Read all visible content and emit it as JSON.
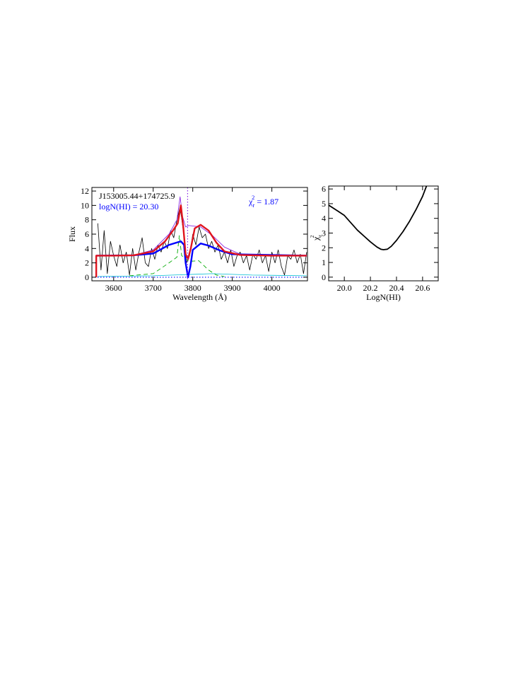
{
  "chart_data": [
    {
      "type": "line",
      "xlabel": "Wavelength (Å)",
      "ylabel": "Flux",
      "xlim": [
        3545,
        4090
      ],
      "ylim": [
        -0.5,
        12.5
      ],
      "xticks": [
        3600,
        3700,
        3800,
        3900,
        4000
      ],
      "yticks": [
        0,
        2,
        4,
        6,
        8,
        10,
        12
      ],
      "annotations": [
        {
          "text": "J153005.44+174725.9",
          "color": "#000000"
        },
        {
          "text": "logN(HI) = 20.30",
          "color": "#0000ff"
        }
      ],
      "chi_label": {
        "base": "χ",
        "sub": "r",
        "sup": "2",
        "rest": " = 1.87",
        "color": "#0000ff"
      },
      "vline": {
        "x": 3787,
        "color": "#8a2be2"
      },
      "series": [
        {
          "color": "#000000",
          "width": 0.8,
          "style": "solid",
          "x": [
            3560,
            3568,
            3576,
            3584,
            3592,
            3600,
            3608,
            3616,
            3624,
            3632,
            3640,
            3648,
            3656,
            3664,
            3672,
            3680,
            3688,
            3696,
            3704,
            3712,
            3720,
            3728,
            3736,
            3744,
            3752,
            3760,
            3768,
            3776,
            3784,
            3792,
            3800,
            3808,
            3816,
            3824,
            3832,
            3840,
            3848,
            3856,
            3864,
            3872,
            3880,
            3888,
            3896,
            3904,
            3912,
            3920,
            3928,
            3936,
            3944,
            3952,
            3960,
            3968,
            3976,
            3984,
            3992,
            4000,
            4008,
            4016,
            4024,
            4032,
            4040,
            4048,
            4056,
            4064,
            4072,
            4080,
            4088
          ],
          "values": [
            7.5,
            1.0,
            6.5,
            0.5,
            5.0,
            3.0,
            1.5,
            4.5,
            2.0,
            3.5,
            0.3,
            4.0,
            1.0,
            3.5,
            5.5,
            2.0,
            1.5,
            4.0,
            2.5,
            4.5,
            3.5,
            5.0,
            4.0,
            6.5,
            5.5,
            8.0,
            9.8,
            6.5,
            2.0,
            3.0,
            6.0,
            4.5,
            7.0,
            5.5,
            6.0,
            4.0,
            5.0,
            3.5,
            4.5,
            2.5,
            3.5,
            2.0,
            3.8,
            1.5,
            3.0,
            3.5,
            2.0,
            3.0,
            1.0,
            3.2,
            2.5,
            3.8,
            2.0,
            3.0,
            0.8,
            3.5,
            2.0,
            3.8,
            1.5,
            0.3,
            3.0,
            2.5,
            3.8,
            2.0,
            3.2,
            0.5,
            3.5
          ]
        },
        {
          "color": "#00bcd4",
          "width": 0.8,
          "style": "solid",
          "x": [
            3560,
            3700,
            3850,
            3950,
            4088
          ],
          "values": [
            0.1,
            0.2,
            0.5,
            0.3,
            0.2
          ]
        },
        {
          "color": "#00aa00",
          "width": 0.9,
          "style": "dashed",
          "x": [
            3640,
            3700,
            3740,
            3760,
            3766,
            3772,
            3790,
            3815,
            3840,
            3860,
            3880
          ],
          "values": [
            0.2,
            0.5,
            2.0,
            2.8,
            5.8,
            3.0,
            2.2,
            2.3,
            1.0,
            0.3,
            0.1
          ]
        },
        {
          "color": "#0000ff",
          "width": 1.2,
          "style": "dotted",
          "x": [
            3545,
            4090
          ],
          "values": [
            0,
            0
          ]
        },
        {
          "color": "#8a2be2",
          "width": 0.9,
          "style": "solid",
          "x": [
            3556,
            3650,
            3700,
            3740,
            3760,
            3768,
            3774,
            3782,
            3790,
            3820,
            3850,
            3880,
            3920,
            4088
          ],
          "values": [
            3.0,
            3.05,
            3.8,
            6.0,
            8.0,
            11.2,
            8.5,
            7.0,
            7.2,
            7.0,
            5.8,
            4.2,
            3.2,
            3.0
          ]
        },
        {
          "color": "#0000ff",
          "width": 2.4,
          "style": "solid",
          "x": [
            3556,
            3650,
            3700,
            3740,
            3770,
            3778,
            3782,
            3788,
            3794,
            3800,
            3820,
            3840,
            3870,
            3900,
            4088
          ],
          "values": [
            3.0,
            3.05,
            3.3,
            4.5,
            5.0,
            4.5,
            2.0,
            0.0,
            1.5,
            3.8,
            4.7,
            4.4,
            3.7,
            3.2,
            3.0
          ]
        },
        {
          "color": "#e0141e",
          "width": 2.4,
          "style": "solid",
          "x": [
            3556,
            3556,
            3600,
            3650,
            3700,
            3730,
            3750,
            3762,
            3770,
            3776,
            3782,
            3788,
            3795,
            3805,
            3820,
            3840,
            3860,
            3880,
            3920,
            4000,
            4088
          ],
          "values": [
            0,
            3.0,
            3.0,
            3.05,
            3.6,
            5.0,
            6.5,
            7.5,
            10.0,
            7.0,
            3.2,
            2.5,
            4.0,
            6.8,
            7.3,
            6.5,
            4.8,
            3.6,
            3.1,
            3.0,
            3.0
          ]
        }
      ]
    },
    {
      "type": "line",
      "xlabel": "LogN(HI)",
      "ylabel_parts": {
        "base": "χ",
        "sub": "r",
        "sup": "2"
      },
      "xlim": [
        19.88,
        20.72
      ],
      "ylim": [
        -0.25,
        6.2
      ],
      "xticks": [
        {
          "value": 20.0,
          "label": "20.0"
        },
        {
          "value": 20.2,
          "label": "20.2"
        },
        {
          "value": 20.4,
          "label": "20.4"
        },
        {
          "value": 20.6,
          "label": "20.6"
        }
      ],
      "yticks": [
        0,
        1,
        2,
        3,
        4,
        5,
        6
      ],
      "series": [
        {
          "color": "#000000",
          "width": 1.8,
          "style": "solid",
          "x": [
            19.88,
            19.95,
            20.0,
            20.05,
            20.1,
            20.15,
            20.2,
            20.25,
            20.28,
            20.3,
            20.33,
            20.36,
            20.4,
            20.45,
            20.5,
            20.55,
            20.6,
            20.63
          ],
          "values": [
            4.9,
            4.5,
            4.2,
            3.7,
            3.2,
            2.8,
            2.4,
            2.05,
            1.9,
            1.87,
            1.9,
            2.1,
            2.5,
            3.1,
            3.8,
            4.6,
            5.5,
            6.2
          ]
        }
      ]
    }
  ]
}
